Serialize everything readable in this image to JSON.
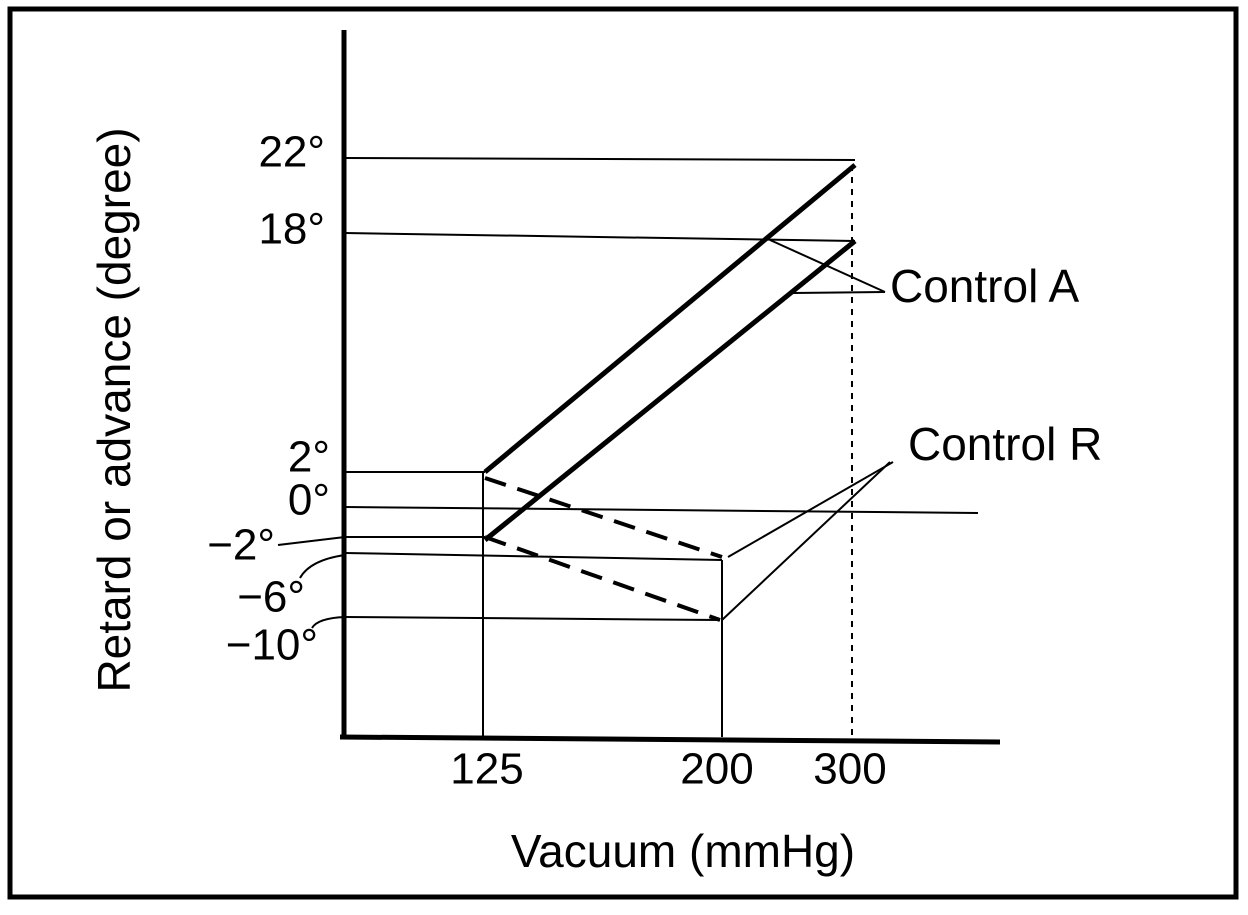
{
  "y_axis": {
    "label": "Retard or advance (degree)",
    "ticks": [
      "22°",
      "18°",
      "2°",
      "0°",
      "−2°",
      "−6°",
      "−10°"
    ]
  },
  "x_axis": {
    "label": "Vacuum (mmHg)",
    "ticks": [
      "125",
      "200",
      "300"
    ]
  },
  "annotations": [
    "Control A",
    "Control R"
  ]
}
